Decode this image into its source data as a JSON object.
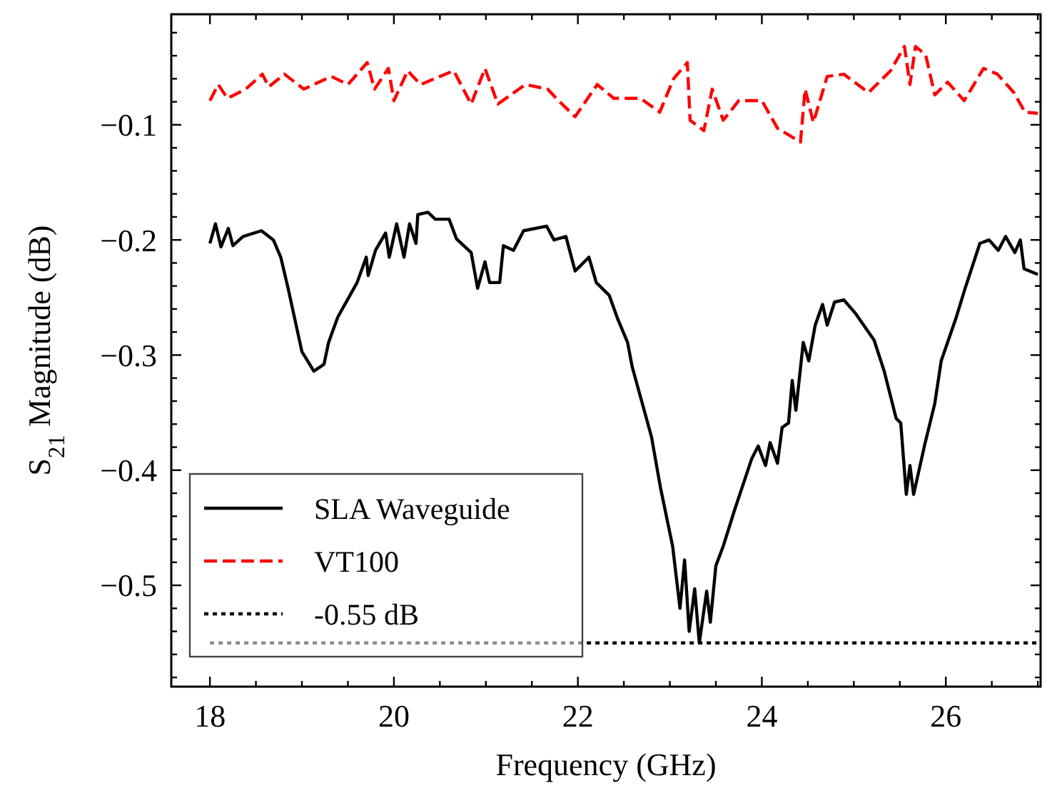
{
  "chart_data": {
    "type": "line",
    "xlabel": "Frequency (GHz)",
    "ylabel": "S$_{21}$ Magnitude (dB)",
    "xlim": [
      17.58,
      27.03
    ],
    "ylim": [
      -0.588,
      -0.004
    ],
    "xticks": [
      18,
      {
        "value": 18.5,
        "label": null
      },
      {
        "value": 19,
        "label": null
      },
      {
        "value": 19.5,
        "label": null
      },
      20,
      {
        "value": 20.5,
        "label": null
      },
      {
        "value": 21,
        "label": null
      },
      {
        "value": 21.5,
        "label": null
      },
      22,
      {
        "value": 22.5,
        "label": null
      },
      {
        "value": 23,
        "label": null
      },
      {
        "value": 23.5,
        "label": null
      },
      24,
      {
        "value": 24.5,
        "label": null
      },
      {
        "value": 25,
        "label": null
      },
      {
        "value": 25.5,
        "label": null
      },
      26,
      {
        "value": 26.5,
        "label": null
      },
      {
        "value": 27,
        "label": null
      }
    ],
    "yticks": [
      {
        "value": -0.58,
        "label": null
      },
      {
        "value": -0.56,
        "label": null
      },
      {
        "value": -0.54,
        "label": null
      },
      {
        "value": -0.52,
        "label": null
      },
      {
        "value": -0.5,
        "label": "−0.5"
      },
      {
        "value": -0.48,
        "label": null
      },
      {
        "value": -0.46,
        "label": null
      },
      {
        "value": -0.44,
        "label": null
      },
      {
        "value": -0.42,
        "label": null
      },
      {
        "value": -0.4,
        "label": "−0.4"
      },
      {
        "value": -0.38,
        "label": null
      },
      {
        "value": -0.36,
        "label": null
      },
      {
        "value": -0.34,
        "label": null
      },
      {
        "value": -0.32,
        "label": null
      },
      {
        "value": -0.3,
        "label": "−0.3"
      },
      {
        "value": -0.28,
        "label": null
      },
      {
        "value": -0.26,
        "label": null
      },
      {
        "value": -0.24,
        "label": null
      },
      {
        "value": -0.22,
        "label": null
      },
      {
        "value": -0.2,
        "label": "−0.2"
      },
      {
        "value": -0.18,
        "label": null
      },
      {
        "value": -0.16,
        "label": null
      },
      {
        "value": -0.14,
        "label": null
      },
      {
        "value": -0.12,
        "label": null
      },
      {
        "value": -0.1,
        "label": "−0.1"
      },
      {
        "value": -0.08,
        "label": null
      },
      {
        "value": -0.06,
        "label": null
      },
      {
        "value": -0.04,
        "label": null
      },
      {
        "value": -0.02,
        "label": null
      }
    ],
    "grid": false,
    "legend": "bottom left",
    "series": [
      {
        "name": "SLA Waveguide",
        "color": "#000000",
        "line_style": "solid",
        "x": [
          18.0,
          18.06,
          18.12,
          18.2,
          18.25,
          18.36,
          18.56,
          18.69,
          18.77,
          18.85,
          19.0,
          19.13,
          19.24,
          19.29,
          19.39,
          19.6,
          19.7,
          19.72,
          19.8,
          19.91,
          19.95,
          20.03,
          20.11,
          20.17,
          20.24,
          20.26,
          20.37,
          20.45,
          20.6,
          20.68,
          20.84,
          20.91,
          20.99,
          21.04,
          21.15,
          21.19,
          21.3,
          21.41,
          21.66,
          21.74,
          21.87,
          21.97,
          22.12,
          22.2,
          22.34,
          22.43,
          22.54,
          22.59,
          22.8,
          22.9,
          23.03,
          23.11,
          23.16,
          23.21,
          23.27,
          23.32,
          23.4,
          23.44,
          23.5,
          23.58,
          23.71,
          23.89,
          23.96,
          24.04,
          24.09,
          24.17,
          24.22,
          24.29,
          24.33,
          24.37,
          24.45,
          24.51,
          24.58,
          24.66,
          24.71,
          24.79,
          24.89,
          25.02,
          25.22,
          25.33,
          25.46,
          25.51,
          25.57,
          25.61,
          25.65,
          25.77,
          25.88,
          25.95,
          26.11,
          26.21,
          26.37,
          26.47,
          26.57,
          26.65,
          26.75,
          26.81,
          26.85,
          27.0
        ],
        "values": [
          -0.203,
          -0.186,
          -0.206,
          -0.19,
          -0.205,
          -0.197,
          -0.192,
          -0.2,
          -0.215,
          -0.242,
          -0.297,
          -0.314,
          -0.308,
          -0.289,
          -0.267,
          -0.237,
          -0.215,
          -0.231,
          -0.209,
          -0.194,
          -0.215,
          -0.186,
          -0.215,
          -0.186,
          -0.203,
          -0.178,
          -0.176,
          -0.182,
          -0.182,
          -0.199,
          -0.211,
          -0.242,
          -0.219,
          -0.237,
          -0.237,
          -0.205,
          -0.209,
          -0.192,
          -0.188,
          -0.2,
          -0.197,
          -0.227,
          -0.215,
          -0.237,
          -0.248,
          -0.268,
          -0.289,
          -0.31,
          -0.371,
          -0.416,
          -0.466,
          -0.52,
          -0.478,
          -0.54,
          -0.503,
          -0.55,
          -0.505,
          -0.532,
          -0.483,
          -0.466,
          -0.433,
          -0.39,
          -0.379,
          -0.396,
          -0.376,
          -0.394,
          -0.363,
          -0.359,
          -0.322,
          -0.348,
          -0.289,
          -0.305,
          -0.274,
          -0.256,
          -0.274,
          -0.254,
          -0.252,
          -0.264,
          -0.287,
          -0.314,
          -0.355,
          -0.359,
          -0.421,
          -0.396,
          -0.421,
          -0.378,
          -0.342,
          -0.305,
          -0.268,
          -0.242,
          -0.203,
          -0.2,
          -0.209,
          -0.197,
          -0.211,
          -0.2,
          -0.225,
          -0.23
        ]
      },
      {
        "name": "VT100",
        "color": "#ff0000",
        "line_style": "dashed",
        "x": [
          18.0,
          18.09,
          18.19,
          18.39,
          18.57,
          18.64,
          18.81,
          19.02,
          19.32,
          19.5,
          19.71,
          19.79,
          19.94,
          20.0,
          20.15,
          20.29,
          20.65,
          20.84,
          20.99,
          21.13,
          21.43,
          21.67,
          21.79,
          21.97,
          22.21,
          22.39,
          22.68,
          22.89,
          23.04,
          23.19,
          23.22,
          23.37,
          23.46,
          23.58,
          23.75,
          24.0,
          24.17,
          24.42,
          24.47,
          24.56,
          24.71,
          24.89,
          25.16,
          25.4,
          25.55,
          25.61,
          25.67,
          25.78,
          25.88,
          26.02,
          26.2,
          26.41,
          26.56,
          26.74,
          26.86,
          27.0
        ],
        "values": [
          -0.079,
          -0.065,
          -0.077,
          -0.069,
          -0.056,
          -0.067,
          -0.056,
          -0.069,
          -0.058,
          -0.065,
          -0.046,
          -0.069,
          -0.051,
          -0.079,
          -0.053,
          -0.065,
          -0.053,
          -0.082,
          -0.051,
          -0.082,
          -0.065,
          -0.069,
          -0.079,
          -0.093,
          -0.065,
          -0.077,
          -0.077,
          -0.089,
          -0.06,
          -0.046,
          -0.096,
          -0.105,
          -0.069,
          -0.096,
          -0.079,
          -0.079,
          -0.103,
          -0.115,
          -0.069,
          -0.098,
          -0.058,
          -0.056,
          -0.072,
          -0.053,
          -0.032,
          -0.065,
          -0.032,
          -0.039,
          -0.074,
          -0.063,
          -0.079,
          -0.051,
          -0.056,
          -0.072,
          -0.089,
          -0.09
        ]
      },
      {
        "name": "-0.55 dB",
        "color": "#000000",
        "line_style": "dotted",
        "x": [
          18,
          27
        ],
        "values": [
          -0.55,
          -0.55
        ]
      }
    ]
  }
}
